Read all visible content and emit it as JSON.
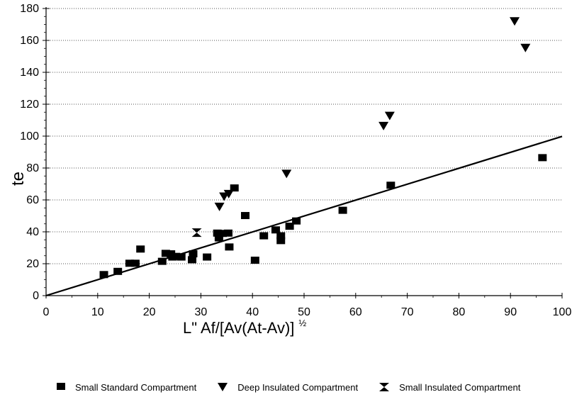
{
  "chart_data": {
    "type": "scatter",
    "title": "",
    "xlabel": "L\" Af/[Av(At-Av)]",
    "xlabel_superscript": "½",
    "ylabel": "te",
    "xlim": [
      0,
      100
    ],
    "ylim": [
      0,
      180
    ],
    "x_ticks": [
      "0",
      "10",
      "20",
      "30",
      "40",
      "50",
      "60",
      "70",
      "80",
      "90",
      "100"
    ],
    "y_ticks": [
      "0",
      "20",
      "40",
      "60",
      "80",
      "100",
      "120",
      "140",
      "160",
      "180"
    ],
    "grid": "horizontal dotted",
    "legend_position": "bottom",
    "series": [
      {
        "name": "Small Standard Compartment",
        "marker": "square",
        "points": [
          [
            11.2,
            13.2
          ],
          [
            13.9,
            15.2
          ],
          [
            16.2,
            20.3
          ],
          [
            17.3,
            20.3
          ],
          [
            18.3,
            29.2
          ],
          [
            22.5,
            21.5
          ],
          [
            23.2,
            26.5
          ],
          [
            24.2,
            26.2
          ],
          [
            24.5,
            24.2
          ],
          [
            25.2,
            24.6
          ],
          [
            26.2,
            24.2
          ],
          [
            28.3,
            22.5
          ],
          [
            28.5,
            26.2
          ],
          [
            31.2,
            24.2
          ],
          [
            33.2,
            39.2
          ],
          [
            33.5,
            36.2
          ],
          [
            34.2,
            39.0
          ],
          [
            35.3,
            39.2
          ],
          [
            35.5,
            30.5
          ],
          [
            36.5,
            67.5
          ],
          [
            38.6,
            50.2
          ],
          [
            40.5,
            22.2
          ],
          [
            42.2,
            37.5
          ],
          [
            44.5,
            41.2
          ],
          [
            45.5,
            37.5
          ],
          [
            45.5,
            34.5
          ],
          [
            47.2,
            43.5
          ],
          [
            48.5,
            46.8
          ],
          [
            57.5,
            53.5
          ],
          [
            66.8,
            69.2
          ],
          [
            96.2,
            86.5
          ]
        ]
      },
      {
        "name": "Deep Insulated Compartment",
        "marker": "triangle-down",
        "points": [
          [
            33.6,
            55.6
          ],
          [
            34.5,
            62.0
          ],
          [
            35.4,
            63.6
          ],
          [
            46.6,
            76.3
          ],
          [
            65.4,
            106.3
          ],
          [
            66.6,
            112.6
          ],
          [
            90.8,
            171.9
          ],
          [
            92.9,
            155.2
          ]
        ]
      },
      {
        "name": "Small Insulated Compartment",
        "marker": "hourglass",
        "points": [
          [
            29.2,
            39.5
          ]
        ]
      }
    ],
    "fit_line": {
      "x": [
        0,
        100
      ],
      "y": [
        0,
        99.8
      ]
    }
  },
  "colors": {
    "marker": "#000000",
    "grid": "#555555",
    "line": "#000000"
  }
}
